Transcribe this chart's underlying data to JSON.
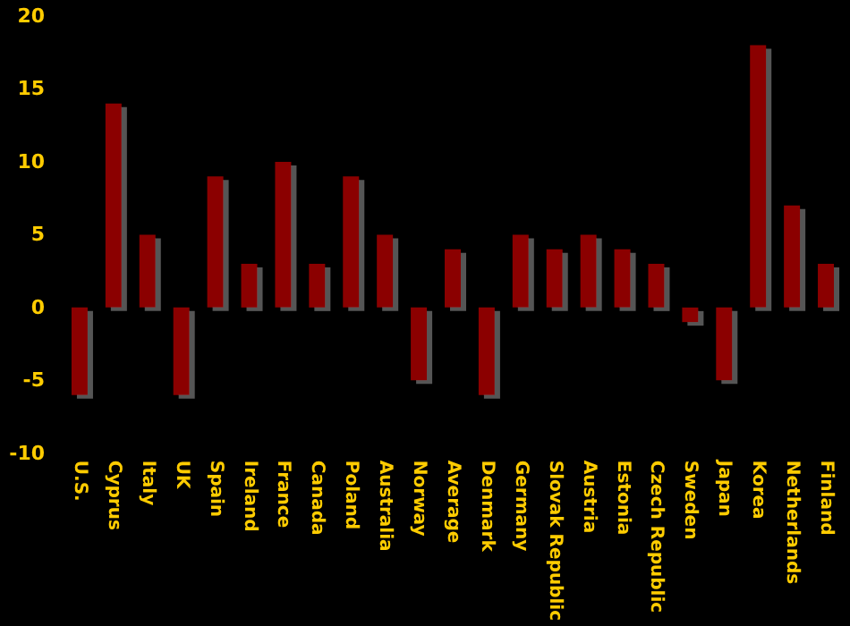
{
  "chart_data": {
    "type": "bar",
    "categories": [
      "U.S.",
      "Cyprus",
      "Italy",
      "UK",
      "Spain",
      "Ireland",
      "France",
      "Canada",
      "Poland",
      "Australia",
      "Norway",
      "Average",
      "Denmark",
      "Germany",
      "Slovak Republic",
      "Austria",
      "Estonia",
      "Czech Republic",
      "Sweden",
      "Japan",
      "Korea",
      "Netherlands",
      "Finland"
    ],
    "values": [
      -6,
      14,
      5,
      -6,
      9,
      3,
      10,
      3,
      9,
      5,
      -5,
      4,
      -6,
      5,
      4,
      5,
      4,
      3,
      -1,
      -5,
      18,
      7,
      3
    ],
    "color": "#8b0000",
    "ylim": [
      -10,
      20
    ],
    "yticks": [
      -10,
      -5,
      0,
      5,
      10,
      15,
      20
    ],
    "grid": false
  }
}
